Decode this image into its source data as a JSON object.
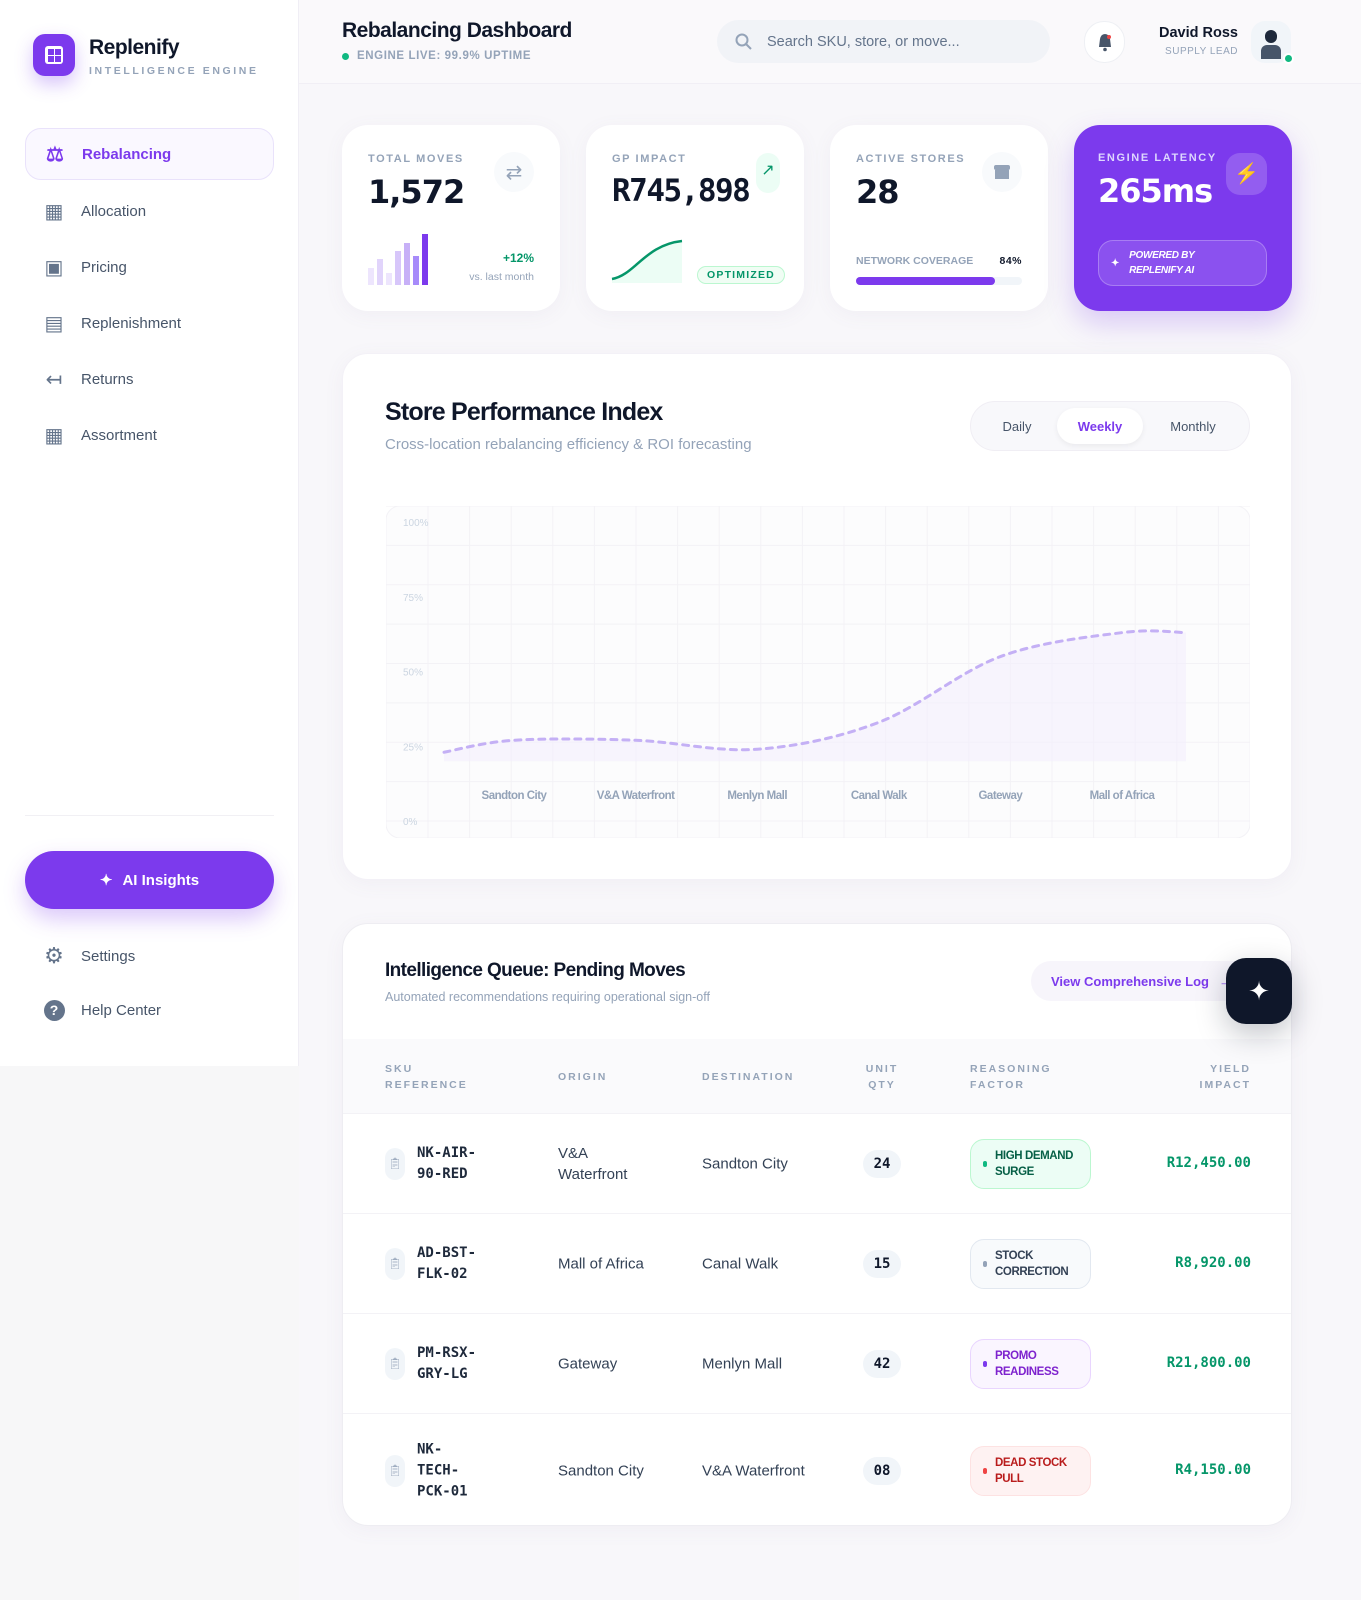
{
  "brand": {
    "name": "Replenify",
    "subtitle": "INTELLIGENCE ENGINE"
  },
  "sidebar": {
    "items": [
      {
        "label": "Rebalancing",
        "icon": "scale-icon",
        "active": true
      },
      {
        "label": "Allocation",
        "icon": "grid-icon"
      },
      {
        "label": "Pricing",
        "icon": "money-icon"
      },
      {
        "label": "Replenishment",
        "icon": "archive-icon"
      },
      {
        "label": "Returns",
        "icon": "return-arrow-icon"
      },
      {
        "label": "Assortment",
        "icon": "grid-plus-icon"
      }
    ],
    "ai_button": "AI Insights",
    "footer": [
      {
        "label": "Settings",
        "icon": "gear-icon"
      },
      {
        "label": "Help Center",
        "icon": "help-icon"
      }
    ]
  },
  "header": {
    "title": "Rebalancing Dashboard",
    "status": "ENGINE LIVE: 99.9% UPTIME",
    "search_placeholder": "Search SKU, store, or move...",
    "user": {
      "name": "David Ross",
      "role": "SUPPLY LEAD"
    }
  },
  "kpis": {
    "total_moves": {
      "label": "TOTAL MOVES",
      "value": "1,572",
      "delta": "+12%",
      "delta_note": "vs. last month"
    },
    "gp_impact": {
      "label": "GP IMPACT",
      "value": "R745,898",
      "badge": "OPTIMIZED"
    },
    "active_stores": {
      "label": "ACTIVE STORES",
      "value": "28",
      "coverage_label": "NETWORK COVERAGE",
      "coverage": "84%",
      "coverage_value": 84
    },
    "latency": {
      "label": "ENGINE LATENCY",
      "value": "265ms",
      "powered_line1": "POWERED BY",
      "powered_line2": "REPLENIFY AI"
    }
  },
  "colors": {
    "accent": "#7c3aed",
    "positive": "#059669",
    "danger": "#dc2626"
  },
  "performance": {
    "title": "Store Performance Index",
    "subtitle": "Cross-location rebalancing efficiency & ROI forecasting",
    "tabs": [
      "Daily",
      "Weekly",
      "Monthly"
    ],
    "active_tab": "Weekly"
  },
  "chart_data": {
    "type": "line",
    "categories": [
      "Sandton City",
      "V&A Waterfront",
      "Menlyn Mall",
      "Canal Walk",
      "Gateway",
      "Mall of Africa"
    ],
    "values": [
      27,
      27,
      24,
      33,
      55,
      63
    ],
    "yticks": [
      "100%",
      "75%",
      "50%",
      "25%",
      "0%"
    ],
    "ylim": [
      0,
      100
    ],
    "grid": true,
    "style": "dashed-smooth-area"
  },
  "queue": {
    "title": "Intelligence Queue: Pending Moves",
    "subtitle": "Automated recommendations requiring operational sign-off",
    "log_link": "View Comprehensive Log",
    "columns": [
      [
        "SKU",
        "REFERENCE"
      ],
      [
        "ORIGIN",
        ""
      ],
      [
        "DESTINATION",
        ""
      ],
      [
        "UNIT",
        "QTY"
      ],
      [
        "REASONING",
        "FACTOR"
      ],
      [
        "YIELD",
        "IMPACT"
      ]
    ],
    "rows": [
      {
        "sku": "NK-AIR-90-RED",
        "origin": "V&A Waterfront",
        "destination": "Sandton City",
        "qty": "24",
        "reason": "HIGH DEMAND SURGE",
        "tone": "green",
        "yield": "R12,450.00"
      },
      {
        "sku": "AD-BST-FLK-02",
        "origin": "Mall of Africa",
        "destination": "Canal Walk",
        "qty": "15",
        "reason": "STOCK CORRECTION",
        "tone": "gray",
        "yield": "R8,920.00"
      },
      {
        "sku": "PM-RSX-GRY-LG",
        "origin": "Gateway",
        "destination": "Menlyn Mall",
        "qty": "42",
        "reason": "PROMO READINESS",
        "tone": "purple",
        "yield": "R21,800.00"
      },
      {
        "sku": "NK-TECH-PCK-01",
        "origin": "Sandton City",
        "destination": "V&A Waterfront",
        "qty": "08",
        "reason": "DEAD STOCK PULL",
        "tone": "red",
        "yield": "R4,150.00"
      }
    ]
  }
}
